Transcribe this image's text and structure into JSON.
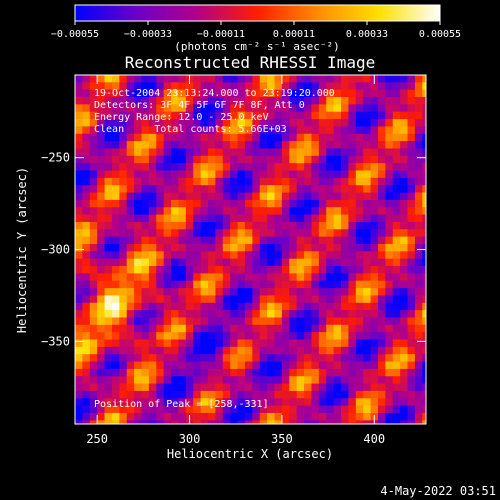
{
  "colorbar": {
    "tick_labels": [
      "-0.00055",
      "-0.00033",
      "-0.00011",
      "0.00011",
      "0.00033",
      "0.00055"
    ],
    "range": [
      -0.00055,
      0.00055
    ],
    "unit_label": "(photons cm⁻² s⁻¹ asec⁻²)",
    "colors": [
      "#0000ff",
      "#6a00c8",
      "#b2008a",
      "#ff1e00",
      "#ff8c00",
      "#ffe000",
      "#ffffff"
    ]
  },
  "chart_data": {
    "type": "heatmap",
    "title": "Reconstructed RHESSI Image",
    "xlabel": "Heliocentric X (arcsec)",
    "ylabel": "Heliocentric Y (arcsec)",
    "xlim": [
      238,
      428
    ],
    "ylim": [
      -395,
      -205
    ],
    "x_ticks": [
      250,
      300,
      350,
      400
    ],
    "y_ticks": [
      -250,
      -300,
      -350
    ],
    "x_tick_labels": [
      "250",
      "300",
      "350",
      "400"
    ],
    "y_tick_labels": [
      "−250",
      "−300",
      "−350"
    ],
    "annotations": [
      "19-Oct-2004 23:13:24.000 to 23:19:20.000",
      "Detectors: 3F 4F 5F 6F 7F 8F, Att 0",
      "Energy Range: 12.0 - 25.0 keV",
      "Clean     Total counts: 5.66E+03"
    ],
    "peak_label": "Position of Peak = [258,-331]",
    "peak": [
      258,
      -331
    ],
    "ridge_direction_deg": 55,
    "ridge_spacing_arcsec": 36
  },
  "footer": {
    "timestamp": "4-May-2022 03:51"
  }
}
